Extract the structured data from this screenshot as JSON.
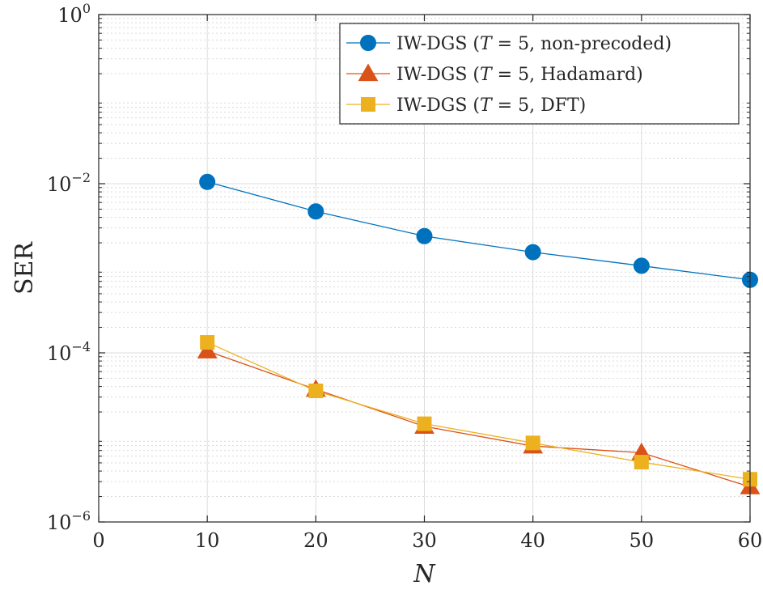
{
  "chart_data": {
    "type": "line",
    "title": "",
    "xlabel": "N",
    "ylabel": "SER",
    "x_scale": "linear",
    "y_scale": "log",
    "xlim": [
      0,
      60
    ],
    "ylim": [
      1e-06,
      1
    ],
    "grid": true,
    "legend_position": "top-right",
    "x_ticks": [
      0,
      10,
      20,
      30,
      40,
      50,
      60
    ],
    "x_tick_labels": [
      "0",
      "10",
      "20",
      "30",
      "40",
      "50",
      "60"
    ],
    "y_ticks": [
      1e-06,
      0.0001,
      0.01,
      1
    ],
    "y_tick_labels": [
      {
        "base": "10",
        "exp": "−6"
      },
      {
        "base": "10",
        "exp": "−4"
      },
      {
        "base": "10",
        "exp": "−2"
      },
      {
        "base": "10",
        "exp": "0"
      }
    ],
    "series": [
      {
        "name": "IW-DGS (T = 5, non-precoded)",
        "legend": {
          "pre": "IW-DGS (",
          "var": "T",
          "post": " = 5, non-precoded)"
        },
        "color": "#0072BD",
        "marker": "circle",
        "x": [
          10,
          20,
          30,
          40,
          50,
          60
        ],
        "values": [
          0.0105,
          0.0047,
          0.0024,
          0.00155,
          0.00107,
          0.00073
        ]
      },
      {
        "name": "IW-DGS (T = 5, Hadamard)",
        "legend": {
          "pre": "IW-DGS (",
          "var": "T",
          "post": " = 5, Hadamard)"
        },
        "color": "#D95319",
        "marker": "triangle",
        "x": [
          10,
          20,
          30,
          40,
          50,
          60
        ],
        "values": [
          0.000105,
          3.7e-05,
          1.35e-05,
          7.9e-06,
          6.6e-06,
          2.6e-06
        ]
      },
      {
        "name": "IW-DGS (T = 5, DFT)",
        "legend": {
          "pre": "IW-DGS (",
          "var": "T",
          "post": " = 5, DFT)"
        },
        "color": "#EDB120",
        "marker": "square",
        "x": [
          10,
          20,
          30,
          40,
          50,
          60
        ],
        "values": [
          0.000133,
          3.55e-05,
          1.45e-05,
          8.6e-06,
          5.1e-06,
          3.2e-06
        ]
      }
    ]
  }
}
